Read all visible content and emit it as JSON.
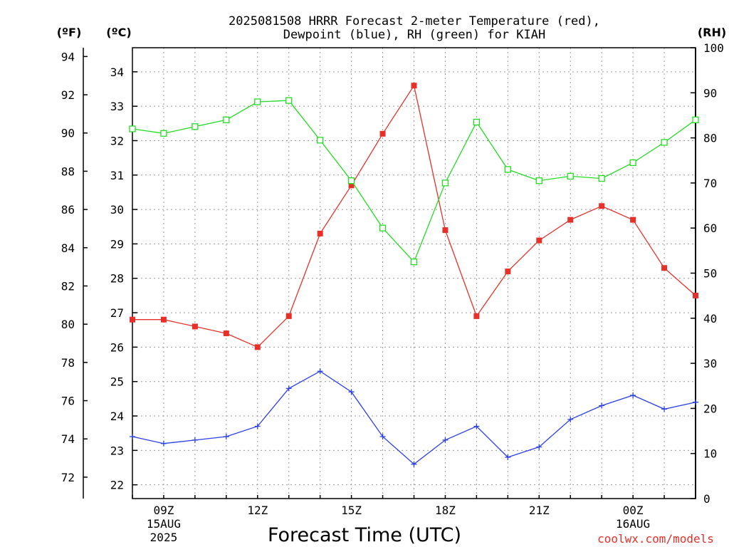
{
  "chart_data": {
    "type": "line",
    "title": [
      "2025081508 HRRR Forecast 2-meter Temperature (red),",
      "Dewpoint (blue), RH (green) for KIAH"
    ],
    "xlabel": "Forecast Time (UTC)",
    "credit": "coolwx.com/models",
    "units": {
      "fahrenheit": "(ºF)",
      "celsius": "(ºC)",
      "rh": "(RH)"
    },
    "x_hours": [
      8,
      9,
      10,
      11,
      12,
      13,
      14,
      15,
      16,
      17,
      18,
      19,
      20,
      21,
      22,
      23,
      24,
      25,
      26
    ],
    "xlim": [
      8,
      26
    ],
    "x_ticks": [
      {
        "hour": 9,
        "label": "09Z",
        "sub": [
          "15AUG",
          "2025"
        ]
      },
      {
        "hour": 12,
        "label": "12Z",
        "sub": []
      },
      {
        "hour": 15,
        "label": "15Z",
        "sub": []
      },
      {
        "hour": 18,
        "label": "18Z",
        "sub": []
      },
      {
        "hour": 21,
        "label": "21Z",
        "sub": []
      },
      {
        "hour": 24,
        "label": "00Z",
        "sub": [
          "16AUG"
        ]
      }
    ],
    "y_left_f": {
      "ticks": [
        72,
        74,
        76,
        78,
        80,
        82,
        84,
        86,
        88,
        90,
        92,
        94
      ]
    },
    "y_left_c": {
      "ylim": [
        21.6,
        34.7
      ],
      "ticks": [
        22,
        23,
        24,
        25,
        26,
        27,
        28,
        29,
        30,
        31,
        32,
        33,
        34
      ]
    },
    "y_right_rh": {
      "ylim": [
        0,
        100
      ],
      "ticks": [
        0,
        10,
        20,
        30,
        40,
        50,
        60,
        70,
        80,
        90,
        100
      ]
    },
    "grid": true,
    "series": [
      {
        "name": "Temperature",
        "axis": "celsius",
        "color": "#e8302a",
        "marker": "filled-square",
        "values": [
          26.8,
          26.8,
          26.6,
          26.4,
          26.0,
          26.9,
          29.3,
          30.7,
          32.2,
          33.6,
          29.4,
          26.9,
          28.2,
          29.1,
          29.7,
          30.1,
          29.7,
          28.3,
          27.5
        ]
      },
      {
        "name": "Dewpoint",
        "axis": "celsius",
        "color": "#2a3fe8",
        "marker": "plus",
        "values": [
          23.4,
          23.2,
          23.3,
          23.4,
          23.7,
          24.8,
          25.3,
          24.7,
          23.4,
          22.6,
          23.3,
          23.7,
          22.8,
          23.1,
          23.9,
          24.3,
          24.6,
          24.2,
          24.4
        ]
      },
      {
        "name": "RH",
        "axis": "rh",
        "color": "#22dd22",
        "marker": "open-square",
        "values": [
          82,
          81,
          82.5,
          84,
          88,
          88.3,
          79.5,
          70.5,
          60,
          52.5,
          70,
          83.5,
          73,
          70.5,
          71.5,
          71,
          74.5,
          79,
          84
        ]
      }
    ]
  }
}
